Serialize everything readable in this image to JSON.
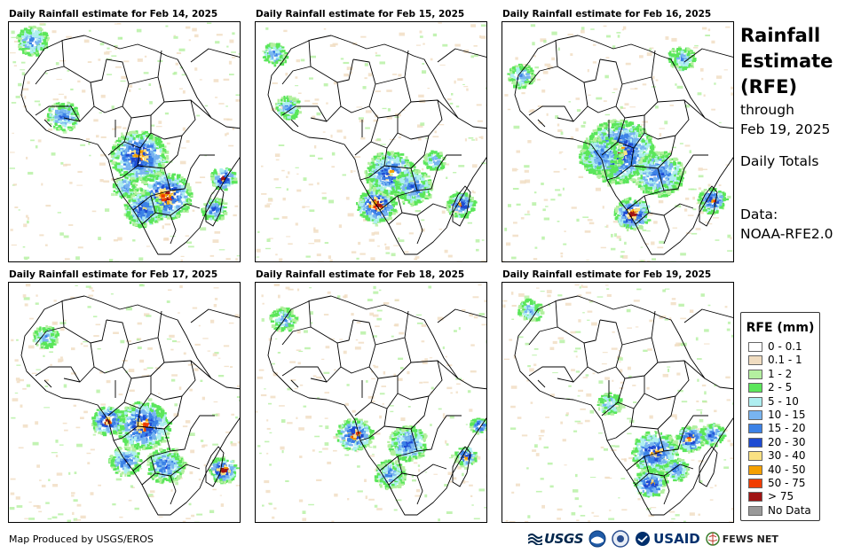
{
  "panels": [
    {
      "title": "Daily Rainfall estimate for Feb 14, 2025"
    },
    {
      "title": "Daily Rainfall estimate for Feb 15, 2025"
    },
    {
      "title": "Daily Rainfall estimate for Feb 16, 2025"
    },
    {
      "title": "Daily Rainfall estimate for Feb 17, 2025"
    },
    {
      "title": "Daily Rainfall estimate for Feb 18, 2025"
    },
    {
      "title": "Daily Rainfall estimate for Feb 19, 2025"
    }
  ],
  "side": {
    "title1": "Rainfall",
    "title2": "Estimate",
    "title3": "(RFE)",
    "through": "through",
    "date": "Feb 19, 2025",
    "totals": "Daily Totals",
    "data_label": "Data:",
    "data_source": "NOAA-RFE2.0"
  },
  "legend": {
    "title": "RFE (mm)",
    "items": [
      {
        "label": "0 - 0.1",
        "color": "#ffffff"
      },
      {
        "label": "0.1 - 1",
        "color": "#f0dcc0"
      },
      {
        "label": "1 - 2",
        "color": "#b4f0a0"
      },
      {
        "label": "2 - 5",
        "color": "#5ae65a"
      },
      {
        "label": "5 - 10",
        "color": "#aeeef0"
      },
      {
        "label": "10 - 15",
        "color": "#78b4f0"
      },
      {
        "label": "15 - 20",
        "color": "#3c82e6"
      },
      {
        "label": "20 - 30",
        "color": "#1e4bd2"
      },
      {
        "label": "30 - 40",
        "color": "#fae182"
      },
      {
        "label": "40 - 50",
        "color": "#f5a000"
      },
      {
        "label": "50 - 75",
        "color": "#f03c00"
      },
      {
        "label": "> 75",
        "color": "#a01414"
      },
      {
        "label": "No Data",
        "color": "#999999"
      }
    ]
  },
  "footer": {
    "credit": "Map Produced by USGS/EROS",
    "logo_usgs": "USGS",
    "logo_usaid": "USAID",
    "logo_fews": "FEWS NET"
  }
}
